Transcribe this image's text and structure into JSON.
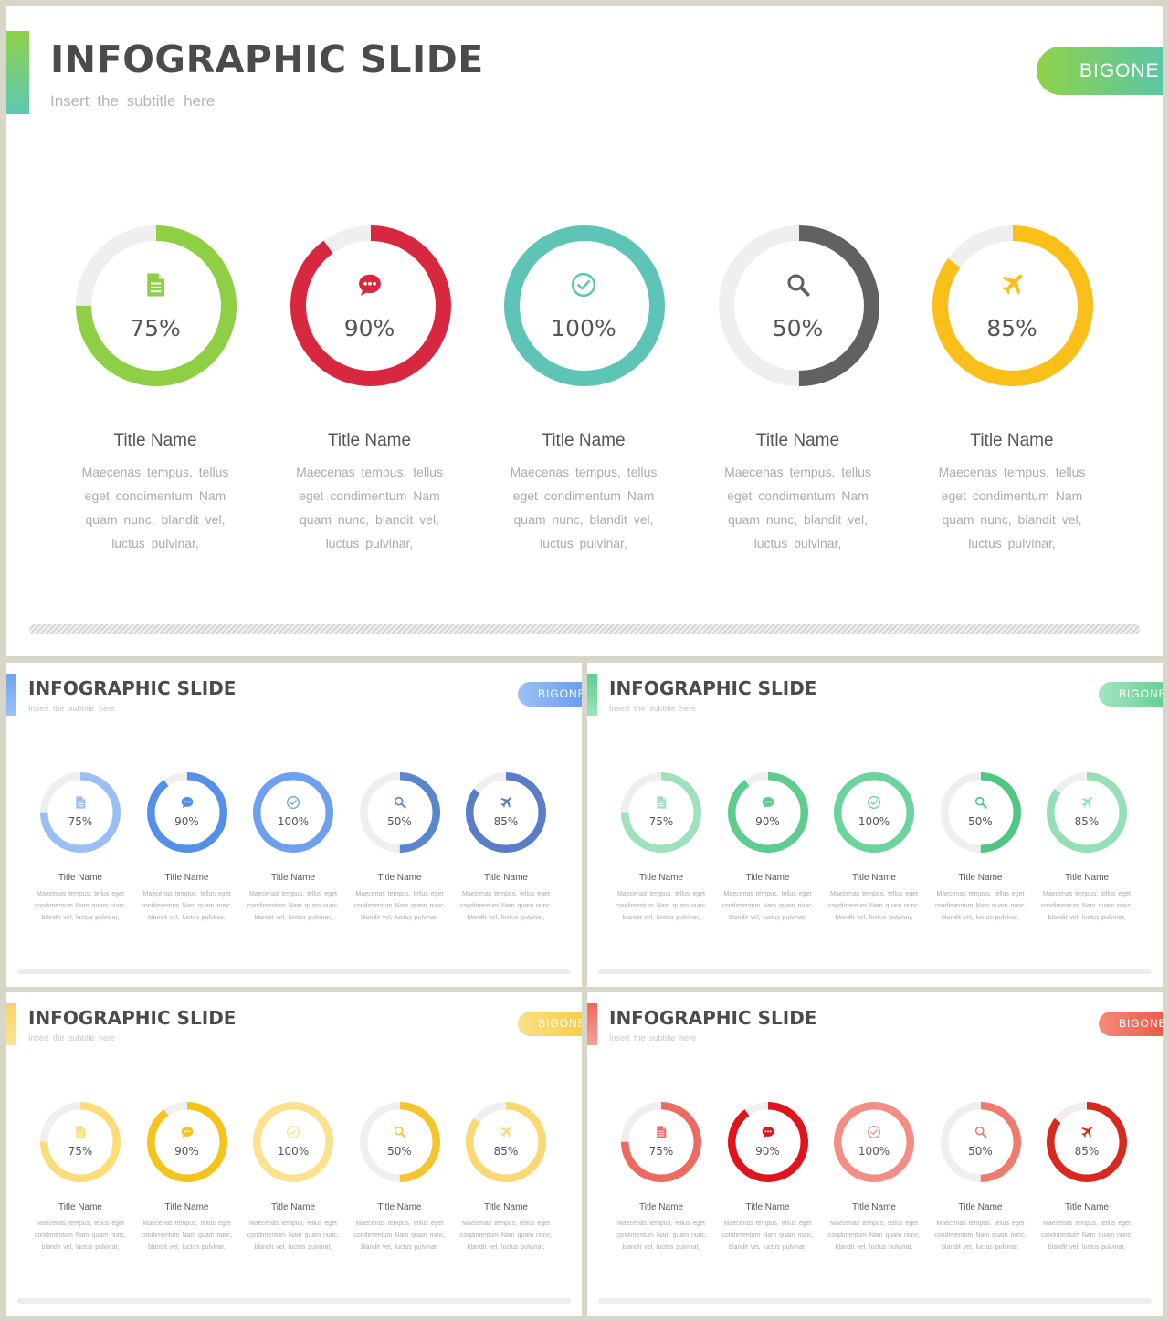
{
  "slides": [
    {
      "title": "INFOGRAPHIC SLIDE",
      "subtitle": "Insert the subtitle here",
      "brand": "BIGONE",
      "theme": "multi",
      "accent_gradient": [
        "#8dd24a",
        "#5ec7b3"
      ],
      "brand_gradient": [
        "#8fd24a",
        "#5cc6a4"
      ],
      "items": [
        {
          "percent": 75,
          "label": "75%",
          "icon": "document-icon",
          "color": "#8ecf45",
          "title": "Title Name",
          "description": "Maecenas tempus, tellus eget condimentum Nam quam nunc, blandit vel, luctus pulvinar,"
        },
        {
          "percent": 90,
          "label": "90%",
          "icon": "chat-bubble-icon",
          "color": "#d8283f",
          "title": "Title Name",
          "description": "Maecenas tempus, tellus eget condimentum Nam quam nunc, blandit vel, luctus pulvinar,"
        },
        {
          "percent": 100,
          "label": "100%",
          "icon": "check-circle-icon",
          "color": "#5ec4b6",
          "title": "Title Name",
          "description": "Maecenas tempus, tellus eget condimentum Nam quam nunc, blandit vel, luctus pulvinar,"
        },
        {
          "percent": 50,
          "label": "50%",
          "icon": "search-icon",
          "color": "#616161",
          "title": "Title Name",
          "description": "Maecenas tempus, tellus eget condimentum Nam quam nunc, blandit vel, luctus pulvinar,"
        },
        {
          "percent": 85,
          "label": "85%",
          "icon": "airplane-icon",
          "color": "#fbbf1a",
          "title": "Title Name",
          "description": "Maecenas tempus, tellus eget condimentum Nam quam nunc, blandit vel, luctus pulvinar,"
        }
      ]
    },
    {
      "title": "INFOGRAPHIC SLIDE",
      "subtitle": "Insert the subtitle here",
      "brand": "BIGONE",
      "theme": "blue",
      "accent_gradient": [
        "#6ea3f2",
        "#9cc1f7"
      ],
      "brand_gradient": [
        "#9cc1f7",
        "#6b9ef0"
      ],
      "items": [
        {
          "percent": 75,
          "label": "75%",
          "icon": "document-icon",
          "color": "#9cbef6",
          "title": "Title Name",
          "description": "Maecenas tempus, tellus eget condimentum Nam quam nunc, blandit vel, luctus pulvinar,"
        },
        {
          "percent": 90,
          "label": "90%",
          "icon": "chat-bubble-icon",
          "color": "#5490ea",
          "title": "Title Name",
          "description": "Maecenas tempus, tellus eget condimentum Nam quam nunc, blandit vel, luctus pulvinar,"
        },
        {
          "percent": 100,
          "label": "100%",
          "icon": "check-circle-icon",
          "color": "#6ea0ee",
          "title": "Title Name",
          "description": "Maecenas tempus, tellus eget condimentum Nam quam nunc, blandit vel, luctus pulvinar,"
        },
        {
          "percent": 50,
          "label": "50%",
          "icon": "search-icon",
          "color": "#5a86cf",
          "title": "Title Name",
          "description": "Maecenas tempus, tellus eget condimentum Nam quam nunc, blandit vel, luctus pulvinar,"
        },
        {
          "percent": 85,
          "label": "85%",
          "icon": "airplane-icon",
          "color": "#5a7ec6",
          "title": "Title Name",
          "description": "Maecenas tempus, tellus eget condimentum Nam quam nunc, blandit vel, luctus pulvinar,"
        }
      ]
    },
    {
      "title": "INFOGRAPHIC SLIDE",
      "subtitle": "Insert the subtitle here",
      "brand": "BIGONE",
      "theme": "green",
      "accent_gradient": [
        "#5fcf8e",
        "#9fe2b9"
      ],
      "brand_gradient": [
        "#a4e5c0",
        "#66d196"
      ],
      "items": [
        {
          "percent": 75,
          "label": "75%",
          "icon": "document-icon",
          "color": "#9fe0bd",
          "title": "Title Name",
          "description": "Maecenas tempus, tellus eget condimentum Nam quam nunc, blandit vel, luctus pulvinar,"
        },
        {
          "percent": 90,
          "label": "90%",
          "icon": "chat-bubble-icon",
          "color": "#5ccd8e",
          "title": "Title Name",
          "description": "Maecenas tempus, tellus eget condimentum Nam quam nunc, blandit vel, luctus pulvinar,"
        },
        {
          "percent": 100,
          "label": "100%",
          "icon": "check-circle-icon",
          "color": "#6dd39c",
          "title": "Title Name",
          "description": "Maecenas tempus, tellus eget condimentum Nam quam nunc, blandit vel, luctus pulvinar,"
        },
        {
          "percent": 50,
          "label": "50%",
          "icon": "search-icon",
          "color": "#4fc784",
          "title": "Title Name",
          "description": "Maecenas tempus, tellus eget condimentum Nam quam nunc, blandit vel, luctus pulvinar,"
        },
        {
          "percent": 85,
          "label": "85%",
          "icon": "airplane-icon",
          "color": "#94dfb6",
          "title": "Title Name",
          "description": "Maecenas tempus, tellus eget condimentum Nam quam nunc, blandit vel, luctus pulvinar,"
        }
      ]
    },
    {
      "title": "INFOGRAPHIC SLIDE",
      "subtitle": "Insert the subtitle here",
      "brand": "BIGONE",
      "theme": "yellow",
      "accent_gradient": [
        "#f8d466",
        "#fbe29a"
      ],
      "brand_gradient": [
        "#fbe08a",
        "#f7cd4a"
      ],
      "items": [
        {
          "percent": 75,
          "label": "75%",
          "icon": "document-icon",
          "color": "#fadc78",
          "title": "Title Name",
          "description": "Maecenas tempus, tellus eget condimentum Nam quam nunc, blandit vel, luctus pulvinar,"
        },
        {
          "percent": 90,
          "label": "90%",
          "icon": "chat-bubble-icon",
          "color": "#f6c31b",
          "title": "Title Name",
          "description": "Maecenas tempus, tellus eget condimentum Nam quam nunc, blandit vel, luctus pulvinar,"
        },
        {
          "percent": 100,
          "label": "100%",
          "icon": "check-circle-icon",
          "color": "#fbe28f",
          "title": "Title Name",
          "description": "Maecenas tempus, tellus eget condimentum Nam quam nunc, blandit vel, luctus pulvinar,"
        },
        {
          "percent": 50,
          "label": "50%",
          "icon": "search-icon",
          "color": "#f6c42c",
          "title": "Title Name",
          "description": "Maecenas tempus, tellus eget condimentum Nam quam nunc, blandit vel, luctus pulvinar,"
        },
        {
          "percent": 85,
          "label": "85%",
          "icon": "airplane-icon",
          "color": "#fad874",
          "title": "Title Name",
          "description": "Maecenas tempus, tellus eget condimentum Nam quam nunc, blandit vel, luctus pulvinar,"
        }
      ]
    },
    {
      "title": "INFOGRAPHIC SLIDE",
      "subtitle": "Insert the subtitle here",
      "brand": "BIGONE",
      "theme": "red",
      "accent_gradient": [
        "#f0685a",
        "#f6a097"
      ],
      "brand_gradient": [
        "#f58a7c",
        "#ec5a4b"
      ],
      "items": [
        {
          "percent": 75,
          "label": "75%",
          "icon": "document-icon",
          "color": "#ee6a5e",
          "title": "Title Name",
          "description": "Maecenas tempus, tellus eget condimentum Nam quam nunc, blandit vel, luctus pulvinar,"
        },
        {
          "percent": 90,
          "label": "90%",
          "icon": "chat-bubble-icon",
          "color": "#e0141c",
          "title": "Title Name",
          "description": "Maecenas tempus, tellus eget condimentum Nam quam nunc, blandit vel, luctus pulvinar,"
        },
        {
          "percent": 100,
          "label": "100%",
          "icon": "check-circle-icon",
          "color": "#f38e84",
          "title": "Title Name",
          "description": "Maecenas tempus, tellus eget condimentum Nam quam nunc, blandit vel, luctus pulvinar,"
        },
        {
          "percent": 50,
          "label": "50%",
          "icon": "search-icon",
          "color": "#ef7a6d",
          "title": "Title Name",
          "description": "Maecenas tempus, tellus eget condimentum Nam quam nunc, blandit vel, luctus pulvinar,"
        },
        {
          "percent": 85,
          "label": "85%",
          "icon": "airplane-icon",
          "color": "#d8291f",
          "title": "Title Name",
          "description": "Maecenas tempus, tellus eget condimentum Nam quam nunc, blandit vel, luctus pulvinar,"
        }
      ]
    }
  ]
}
